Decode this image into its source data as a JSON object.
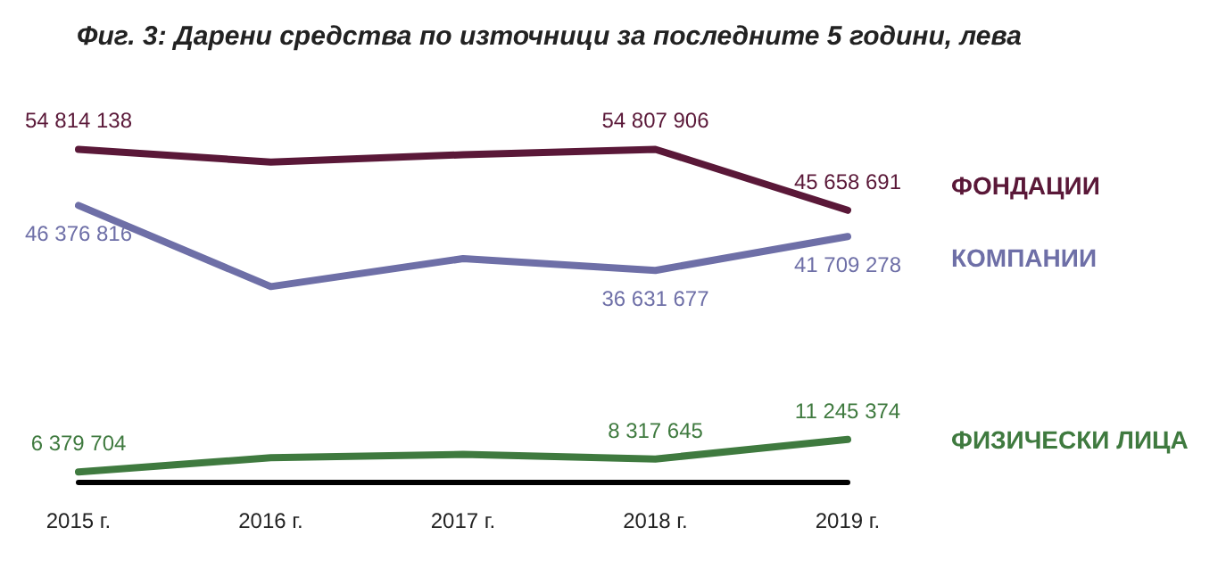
{
  "chart_data": {
    "type": "line",
    "title": "Фиг. 3: Дарени средства по източници за последните 5 години, лева",
    "categories": [
      "2015 г.",
      "2016 г.",
      "2017 г.",
      "2018 г.",
      "2019 г."
    ],
    "series": [
      {
        "name": "ФОНДАЦИИ",
        "color": "#5a1838",
        "values": [
          54814138,
          52900000,
          54000000,
          54807906,
          45658691
        ],
        "value_labels": [
          "54 814 138",
          null,
          null,
          "54 807 906",
          "45 658 691"
        ]
      },
      {
        "name": "КОМПАНИИ",
        "color": "#6e6fa7",
        "values": [
          46376816,
          34200000,
          38400000,
          36631677,
          41709278
        ],
        "value_labels": [
          "46 376 816",
          null,
          null,
          "36 631 677",
          "41 709 278"
        ]
      },
      {
        "name": "ФИЗИЧЕСКИ ЛИЦА",
        "color": "#3f7a3f",
        "values": [
          6379704,
          8500000,
          9000000,
          8317645,
          11245374
        ],
        "value_labels": [
          "6 379 704",
          null,
          null,
          "8 317 645",
          "11 245 374"
        ]
      }
    ],
    "legend": false,
    "grid": false,
    "marker": "none",
    "line_style": "solid"
  }
}
